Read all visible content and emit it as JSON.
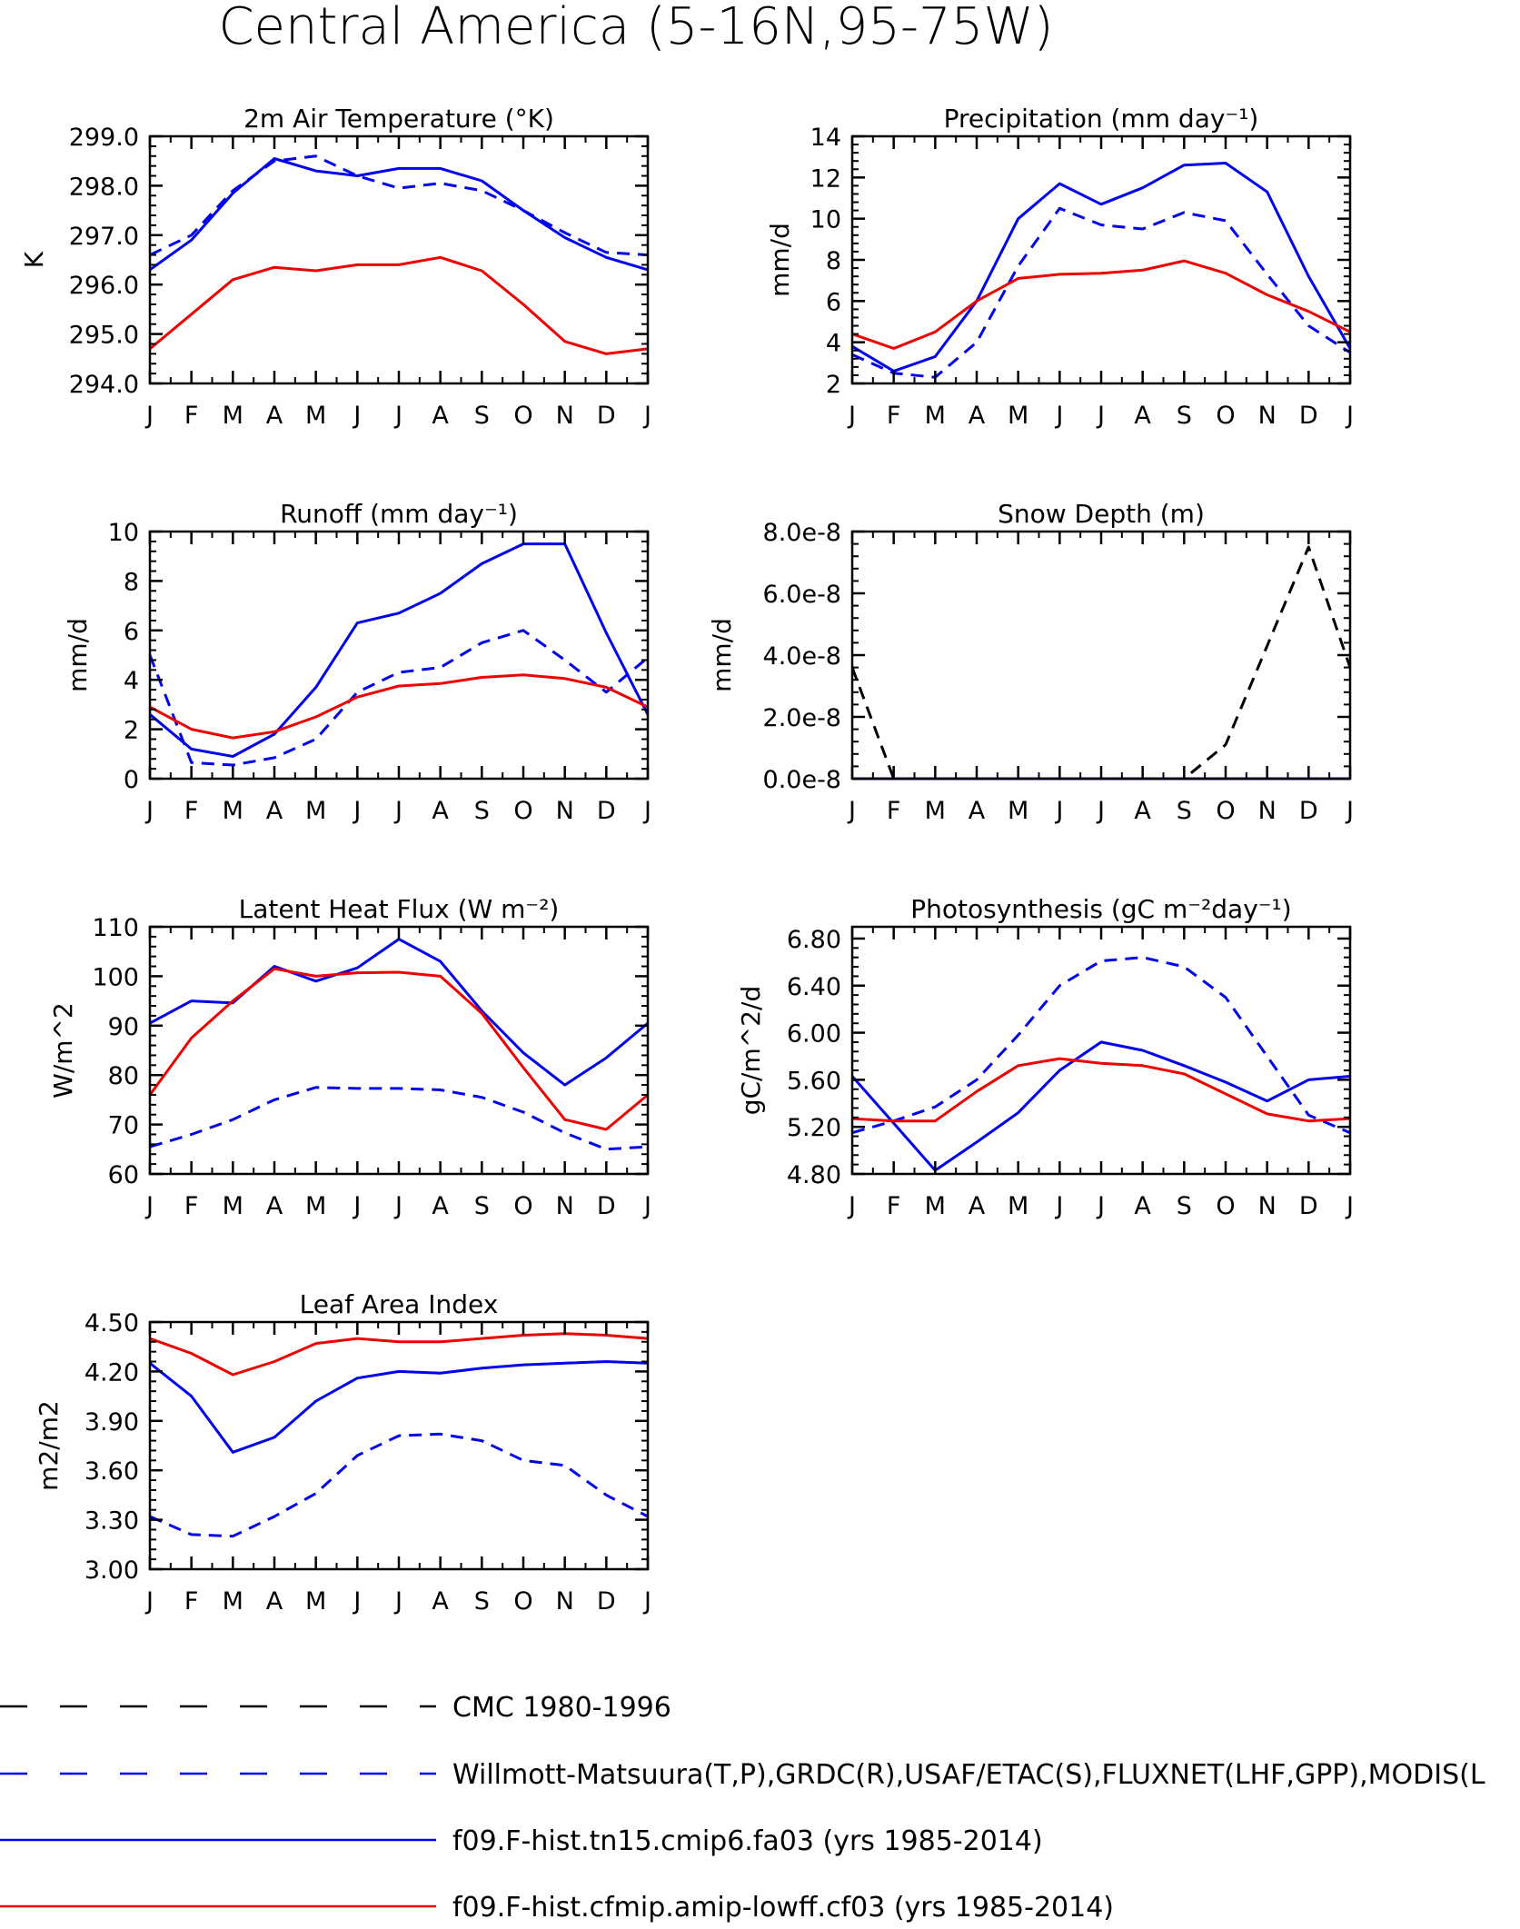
{
  "main_title": "Central America (5-16N,95-75W)",
  "colors": {
    "obs_black": "#000000",
    "obs_blue": "#0000ee",
    "model1_blue": "#0000ee",
    "model2_red": "#ee0000"
  },
  "months": [
    "J",
    "F",
    "M",
    "A",
    "M",
    "J",
    "J",
    "A",
    "S",
    "O",
    "N",
    "D",
    "J"
  ],
  "legend": [
    {
      "label": "CMC 1980-1996",
      "color": "#000000",
      "dash": "long"
    },
    {
      "label": "Willmott-Matsuura(T,P),GRDC(R),USAF/ETAC(S),FLUXNET(LHF,GPP),MODIS(L",
      "color": "#0000ee",
      "dash": "long"
    },
    {
      "label": "f09.F-hist.tn15.cmip6.fa03 (yrs 1985-2014)",
      "color": "#0000ee",
      "dash": "solid"
    },
    {
      "label": "f09.F-hist.cfmip.amip-lowff.cf03 (yrs 1985-2014)",
      "color": "#ee0000",
      "dash": "solid"
    }
  ],
  "chart_data": [
    {
      "type": "line",
      "title": "2m Air Temperature (°K)",
      "ylabel": "K",
      "ylim": [
        294.0,
        299.0
      ],
      "yticks": [
        "294.0",
        "295.0",
        "296.0",
        "297.0",
        "298.0",
        "299.0"
      ],
      "ytick_values": [
        294,
        295,
        296,
        297,
        298,
        299
      ],
      "x": [
        "J",
        "F",
        "M",
        "A",
        "M",
        "J",
        "J",
        "A",
        "S",
        "O",
        "N",
        "D",
        "J"
      ],
      "series": [
        {
          "style": "dash-blue",
          "values": [
            296.6,
            297.0,
            297.9,
            298.5,
            298.6,
            298.2,
            297.95,
            298.05,
            297.9,
            297.5,
            297.05,
            296.65,
            296.6
          ]
        },
        {
          "style": "solid-blue",
          "values": [
            296.3,
            296.9,
            297.85,
            298.55,
            298.3,
            298.2,
            298.35,
            298.35,
            298.1,
            297.5,
            296.95,
            296.55,
            296.3
          ]
        },
        {
          "style": "solid-red",
          "values": [
            294.7,
            295.4,
            296.1,
            296.35,
            296.28,
            296.4,
            296.4,
            296.55,
            296.28,
            295.6,
            294.85,
            294.6,
            294.7
          ]
        }
      ]
    },
    {
      "type": "line",
      "title": "Precipitation (mm day⁻¹)",
      "ylabel": "mm/d",
      "ylim": [
        2,
        14
      ],
      "yticks": [
        "2",
        "4",
        "6",
        "8",
        "10",
        "12",
        "14"
      ],
      "ytick_values": [
        2,
        4,
        6,
        8,
        10,
        12,
        14
      ],
      "x": [
        "J",
        "F",
        "M",
        "A",
        "M",
        "J",
        "J",
        "A",
        "S",
        "O",
        "N",
        "D",
        "J"
      ],
      "series": [
        {
          "style": "dash-blue",
          "values": [
            3.4,
            2.5,
            2.3,
            4.0,
            7.7,
            10.5,
            9.7,
            9.5,
            10.3,
            9.9,
            7.3,
            4.8,
            3.5
          ]
        },
        {
          "style": "solid-blue",
          "values": [
            3.8,
            2.6,
            3.3,
            6.0,
            10.0,
            11.7,
            10.7,
            11.5,
            12.6,
            12.7,
            11.3,
            7.2,
            3.7
          ]
        },
        {
          "style": "solid-red",
          "values": [
            4.4,
            3.7,
            4.5,
            6.0,
            7.1,
            7.3,
            7.35,
            7.5,
            7.95,
            7.35,
            6.3,
            5.5,
            4.5
          ]
        }
      ]
    },
    {
      "type": "line",
      "title": "Runoff (mm day⁻¹)",
      "ylabel": "mm/d",
      "ylim": [
        0,
        10
      ],
      "yticks": [
        "0",
        "2",
        "4",
        "6",
        "8",
        "10"
      ],
      "ytick_values": [
        0,
        2,
        4,
        6,
        8,
        10
      ],
      "x": [
        "J",
        "F",
        "M",
        "A",
        "M",
        "J",
        "J",
        "A",
        "S",
        "O",
        "N",
        "D",
        "J"
      ],
      "series": [
        {
          "style": "dash-blue",
          "values": [
            5.0,
            0.65,
            0.55,
            0.85,
            1.6,
            3.5,
            4.3,
            4.5,
            5.5,
            6.0,
            4.8,
            3.5,
            4.9
          ]
        },
        {
          "style": "solid-blue",
          "values": [
            2.6,
            1.2,
            0.9,
            1.8,
            3.7,
            6.3,
            6.7,
            7.5,
            8.7,
            9.5,
            9.5,
            5.9,
            2.6
          ]
        },
        {
          "style": "solid-red",
          "values": [
            2.9,
            2.0,
            1.65,
            1.9,
            2.5,
            3.3,
            3.75,
            3.85,
            4.1,
            4.2,
            4.05,
            3.7,
            2.9
          ]
        }
      ]
    },
    {
      "type": "line",
      "title": "Snow Depth (m)",
      "ylabel": "mm/d",
      "ylim": [
        0,
        8e-08
      ],
      "yticks": [
        "0.0e-8",
        "2.0e-8",
        "4.0e-8",
        "6.0e-8",
        "8.0e-8"
      ],
      "ytick_values": [
        0,
        2e-08,
        4e-08,
        6e-08,
        8e-08
      ],
      "x": [
        "J",
        "F",
        "M",
        "A",
        "M",
        "J",
        "J",
        "A",
        "S",
        "O",
        "N",
        "D",
        "J"
      ],
      "series": [
        {
          "style": "dash-black",
          "values": [
            3.6e-08,
            0,
            0,
            0,
            0,
            0,
            0,
            0,
            0,
            1.1e-08,
            4.3e-08,
            7.5e-08,
            3.6e-08
          ]
        },
        {
          "style": "solid-blue",
          "values": [
            0,
            0,
            0,
            0,
            0,
            0,
            0,
            0,
            0,
            0,
            0,
            0,
            0
          ]
        }
      ]
    },
    {
      "type": "line",
      "title": "Latent Heat Flux (W m⁻²)",
      "ylabel": "W/m^2",
      "ylim": [
        60,
        110
      ],
      "yticks": [
        "60",
        "70",
        "80",
        "90",
        "100",
        "110"
      ],
      "ytick_values": [
        60,
        70,
        80,
        90,
        100,
        110
      ],
      "x": [
        "J",
        "F",
        "M",
        "A",
        "M",
        "J",
        "J",
        "A",
        "S",
        "O",
        "N",
        "D",
        "J"
      ],
      "series": [
        {
          "style": "dash-blue",
          "values": [
            65.5,
            68,
            71,
            75,
            77.5,
            77.3,
            77.3,
            77,
            75.5,
            72.5,
            68.3,
            65,
            65.5
          ]
        },
        {
          "style": "solid-blue",
          "values": [
            90.5,
            95,
            94.6,
            102,
            99,
            101.7,
            107.5,
            103,
            93,
            84.5,
            78,
            83.5,
            90.5
          ]
        },
        {
          "style": "solid-red",
          "values": [
            76,
            87.5,
            95,
            101.5,
            100,
            100.7,
            100.8,
            100,
            92.5,
            81.5,
            71,
            69,
            76
          ]
        }
      ]
    },
    {
      "type": "line",
      "title": "Photosynthesis (gC m⁻²day⁻¹)",
      "ylabel": "gC/m^2/d",
      "ylim": [
        4.8,
        6.9
      ],
      "yticks": [
        "4.80",
        "5.20",
        "5.60",
        "6.00",
        "6.40",
        "6.80"
      ],
      "ytick_values": [
        4.8,
        5.2,
        5.6,
        6.0,
        6.4,
        6.8
      ],
      "x": [
        "J",
        "F",
        "M",
        "A",
        "M",
        "J",
        "J",
        "A",
        "S",
        "O",
        "N",
        "D",
        "J"
      ],
      "series": [
        {
          "style": "dash-blue",
          "values": [
            5.15,
            5.25,
            5.37,
            5.6,
            5.98,
            6.4,
            6.61,
            6.64,
            6.56,
            6.3,
            5.8,
            5.3,
            5.15
          ]
        },
        {
          "style": "solid-blue",
          "values": [
            5.63,
            5.23,
            4.83,
            5.07,
            5.32,
            5.68,
            5.92,
            5.85,
            5.72,
            5.58,
            5.42,
            5.6,
            5.63
          ]
        },
        {
          "style": "solid-red",
          "values": [
            5.27,
            5.25,
            5.25,
            5.5,
            5.72,
            5.78,
            5.74,
            5.72,
            5.65,
            5.48,
            5.31,
            5.25,
            5.27
          ]
        }
      ]
    },
    {
      "type": "line",
      "title": "Leaf Area Index",
      "ylabel": "m2/m2",
      "ylim": [
        3.0,
        4.5
      ],
      "yticks": [
        "3.00",
        "3.30",
        "3.60",
        "3.90",
        "4.20",
        "4.50"
      ],
      "ytick_values": [
        3.0,
        3.3,
        3.6,
        3.9,
        4.2,
        4.5
      ],
      "x": [
        "J",
        "F",
        "M",
        "A",
        "M",
        "J",
        "J",
        "A",
        "S",
        "O",
        "N",
        "D",
        "J"
      ],
      "series": [
        {
          "style": "dash-blue",
          "values": [
            3.32,
            3.21,
            3.2,
            3.32,
            3.46,
            3.69,
            3.81,
            3.82,
            3.78,
            3.66,
            3.63,
            3.45,
            3.32
          ]
        },
        {
          "style": "solid-blue",
          "values": [
            4.25,
            4.05,
            3.71,
            3.8,
            4.02,
            4.16,
            4.2,
            4.19,
            4.22,
            4.24,
            4.25,
            4.26,
            4.25
          ]
        },
        {
          "style": "solid-red",
          "values": [
            4.4,
            4.31,
            4.18,
            4.26,
            4.37,
            4.4,
            4.38,
            4.38,
            4.4,
            4.42,
            4.43,
            4.42,
            4.4
          ]
        }
      ]
    }
  ]
}
